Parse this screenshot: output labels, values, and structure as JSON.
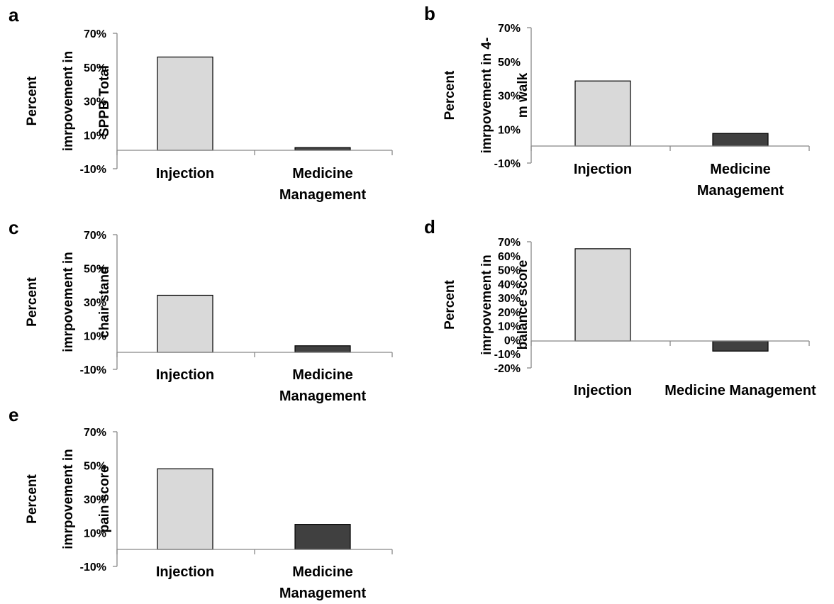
{
  "colors": {
    "injection": "#d9d9d9",
    "medicine_management": "#404040",
    "axis": "#888888"
  },
  "chart_data": [
    {
      "panel": "a",
      "type": "bar",
      "categories": [
        "Injection",
        "Medicine Management"
      ],
      "values": [
        56,
        2.5
      ],
      "ylabel": [
        "Percent",
        "imrpovement in",
        "SPPB Total"
      ],
      "yticks": [
        "-10%",
        "10%",
        "30%",
        "50%",
        "70%"
      ],
      "ylim": [
        -10,
        70
      ],
      "grid": false,
      "legend": "none"
    },
    {
      "panel": "b",
      "type": "bar",
      "categories": [
        "Injection",
        "Medicine Management"
      ],
      "values": [
        38.5,
        7.5
      ],
      "ylabel": [
        "Percent",
        "imrpovement in   4-",
        "m walk"
      ],
      "yticks": [
        "-10%",
        "10%",
        "30%",
        "50%",
        "70%"
      ],
      "ylim": [
        -10,
        70
      ],
      "grid": false,
      "legend": "none"
    },
    {
      "panel": "c",
      "type": "bar",
      "categories": [
        "Injection",
        "Medicine Management"
      ],
      "values": [
        34,
        4
      ],
      "ylabel": [
        "Percent",
        "imrpovement in",
        "chair stand"
      ],
      "yticks": [
        "-10%",
        "10%",
        "30%",
        "50%",
        "70%"
      ],
      "ylim": [
        -10,
        70
      ],
      "grid": false,
      "legend": "none"
    },
    {
      "panel": "d",
      "type": "bar",
      "categories": [
        "Injection",
        "Medicine Management"
      ],
      "values": [
        65,
        -8
      ],
      "ylabel": [
        "Percent",
        "imrpovement in",
        "balance score"
      ],
      "yticks": [
        "-20%",
        "-10%",
        "0%",
        "10%",
        "20%",
        "30%",
        "40%",
        "50%",
        "60%",
        "70%"
      ],
      "ylim": [
        -20,
        70
      ],
      "grid": false,
      "legend": "none"
    },
    {
      "panel": "e",
      "type": "bar",
      "categories": [
        "Injection",
        "Medicine Management"
      ],
      "values": [
        48,
        15
      ],
      "ylabel": [
        "Percent",
        "imrpovement in",
        "pain score"
      ],
      "yticks": [
        "-10%",
        "10%",
        "30%",
        "50%",
        "70%"
      ],
      "ylim": [
        -10,
        70
      ],
      "grid": false,
      "legend": "none"
    }
  ]
}
